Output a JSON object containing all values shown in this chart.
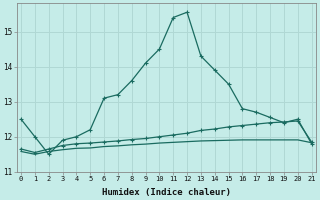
{
  "xlabel": "Humidex (Indice chaleur)",
  "ylabel": "",
  "bg_color": "#c5ece8",
  "grid_color": "#b0d8d4",
  "line_color": "#1a6b60",
  "x": [
    0,
    1,
    2,
    3,
    4,
    5,
    6,
    7,
    8,
    9,
    10,
    11,
    12,
    13,
    14,
    15,
    16,
    17,
    18,
    19,
    20,
    21
  ],
  "line1": [
    12.5,
    12.0,
    11.5,
    11.9,
    12.0,
    12.2,
    13.1,
    13.2,
    13.6,
    14.1,
    14.5,
    15.4,
    15.55,
    14.3,
    13.9,
    13.5,
    12.8,
    12.7,
    12.55,
    12.4,
    12.5,
    11.8
  ],
  "line2": [
    11.65,
    11.55,
    11.65,
    11.75,
    11.8,
    11.82,
    11.85,
    11.88,
    11.92,
    11.95,
    12.0,
    12.05,
    12.1,
    12.18,
    12.22,
    12.28,
    12.32,
    12.36,
    12.4,
    12.42,
    12.45,
    11.85
  ],
  "line3": [
    11.58,
    11.5,
    11.58,
    11.63,
    11.67,
    11.68,
    11.72,
    11.74,
    11.77,
    11.79,
    11.82,
    11.84,
    11.86,
    11.88,
    11.89,
    11.9,
    11.91,
    11.91,
    11.91,
    11.91,
    11.91,
    11.83
  ],
  "ylim": [
    11.0,
    15.8
  ],
  "yticks": [
    11,
    12,
    13,
    14,
    15
  ],
  "xticks": [
    0,
    1,
    2,
    3,
    4,
    5,
    6,
    7,
    8,
    9,
    10,
    11,
    12,
    13,
    14,
    15,
    16,
    17,
    18,
    19,
    20,
    21
  ]
}
